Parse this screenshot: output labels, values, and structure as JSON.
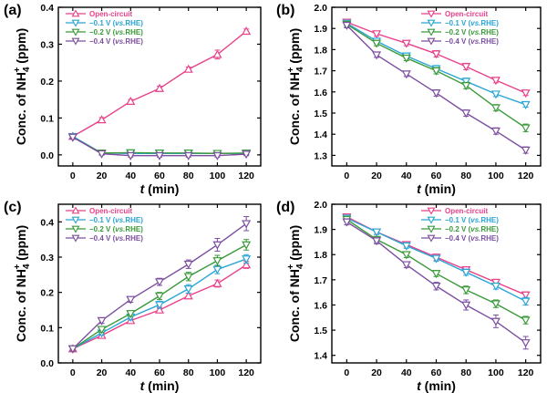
{
  "chart_data": [
    {
      "type": "line",
      "panel_label": "(a)",
      "title": "",
      "xlabel_var": "t",
      "xlabel_unit": " (min)",
      "ylabel_base": "Conc. of NH",
      "ylabel_sub": "4",
      "ylabel_sup": "+",
      "ylabel_tail": " (ppm)",
      "xlim": [
        -10,
        130
      ],
      "ylim": [
        -0.03,
        0.4
      ],
      "xticks": [
        "0",
        "20",
        "40",
        "60",
        "80",
        "100",
        "120"
      ],
      "xtick_values": [
        0,
        20,
        40,
        60,
        80,
        100,
        120
      ],
      "yticks": [
        "0.0",
        "0.1",
        "0.2",
        "0.3",
        "0.4"
      ],
      "ytick_values": [
        0.0,
        0.1,
        0.2,
        0.3,
        0.4
      ],
      "legend_position": "top-left",
      "x": [
        0,
        20,
        40,
        60,
        80,
        100,
        120
      ],
      "series": [
        {
          "name": "Open-circuit",
          "prefix": "Open-circuit",
          "potential": "",
          "suffix": "",
          "color": "#e8418a",
          "marker": "triangle-up",
          "values": [
            0.05,
            0.095,
            0.145,
            0.18,
            0.232,
            0.272,
            0.335
          ],
          "errors": [
            0.006,
            0.006,
            0.005,
            0.006,
            0.006,
            0.012,
            0.006
          ]
        },
        {
          "name": "-0.1 V (vs.RHE)",
          "prefix": "−0.1 V (",
          "potential": "vs.",
          "suffix": "RHE)",
          "color": "#2aa5d6",
          "marker": "triangle-down",
          "values": [
            0.05,
            0.005,
            0.004,
            0.004,
            0.004,
            0.004,
            0.004
          ],
          "errors": [
            0.005,
            0.004,
            0.004,
            0.004,
            0.004,
            0.004,
            0.004
          ]
        },
        {
          "name": "-0.2 V (vs.RHE)",
          "prefix": "−0.2 V (",
          "potential": "vs.",
          "suffix": "RHE)",
          "color": "#3a9a3a",
          "marker": "triangle-down",
          "values": [
            0.048,
            0.005,
            0.006,
            0.005,
            0.005,
            0.004,
            0.005
          ],
          "errors": [
            0.005,
            0.004,
            0.004,
            0.004,
            0.004,
            0.004,
            0.004
          ]
        },
        {
          "name": "-0.4 V (vs.RHE)",
          "prefix": "−0.4 V (",
          "potential": "vs.",
          "suffix": "RHE)",
          "color": "#7c4ea0",
          "marker": "triangle-down",
          "values": [
            0.048,
            0.003,
            -0.002,
            -0.002,
            -0.002,
            -0.002,
            0.002
          ],
          "errors": [
            0.005,
            0.004,
            0.004,
            0.004,
            0.004,
            0.004,
            0.004
          ]
        }
      ]
    },
    {
      "type": "line",
      "panel_label": "(b)",
      "title": "",
      "xlabel_var": "t",
      "xlabel_unit": " (min)",
      "ylabel_base": "Conc. of NH",
      "ylabel_sub": "4",
      "ylabel_sup": "+",
      "ylabel_tail": " (ppm)",
      "xlim": [
        -10,
        130
      ],
      "ylim": [
        1.25,
        2.0
      ],
      "xticks": [
        "0",
        "20",
        "40",
        "60",
        "80",
        "100",
        "120"
      ],
      "xtick_values": [
        0,
        20,
        40,
        60,
        80,
        100,
        120
      ],
      "yticks": [
        "1.3",
        "1.4",
        "1.5",
        "1.6",
        "1.7",
        "1.8",
        "1.9",
        "2.0"
      ],
      "ytick_values": [
        1.3,
        1.4,
        1.5,
        1.6,
        1.7,
        1.8,
        1.9,
        2.0
      ],
      "legend_position": "top-right",
      "x": [
        0,
        20,
        40,
        60,
        80,
        100,
        120
      ],
      "series": [
        {
          "name": "Open-circuit",
          "prefix": "Open-circuit",
          "potential": "",
          "suffix": "",
          "color": "#e8418a",
          "marker": "triangle-down",
          "values": [
            1.93,
            1.875,
            1.83,
            1.78,
            1.72,
            1.655,
            1.595
          ],
          "errors": [
            0.012,
            0.012,
            0.012,
            0.015,
            0.015,
            0.012,
            0.012
          ]
        },
        {
          "name": "-0.1 V (vs.RHE)",
          "prefix": "−0.1 V (",
          "potential": "vs.",
          "suffix": "RHE)",
          "color": "#2aa5d6",
          "marker": "triangle-down",
          "values": [
            1.925,
            1.84,
            1.77,
            1.71,
            1.65,
            1.59,
            1.54
          ],
          "errors": [
            0.012,
            0.012,
            0.012,
            0.015,
            0.015,
            0.012,
            0.012
          ]
        },
        {
          "name": "-0.2 V (vs.RHE)",
          "prefix": "−0.2 V (",
          "potential": "vs.",
          "suffix": "RHE)",
          "color": "#3a9a3a",
          "marker": "triangle-down",
          "values": [
            1.92,
            1.83,
            1.76,
            1.7,
            1.63,
            1.525,
            1.43
          ],
          "errors": [
            0.012,
            0.012,
            0.012,
            0.015,
            0.015,
            0.015,
            0.018
          ]
        },
        {
          "name": "-0.4 V (vs.RHE)",
          "prefix": "−0.4 V (",
          "potential": "vs.",
          "suffix": "RHE)",
          "color": "#7c4ea0",
          "marker": "triangle-down",
          "values": [
            1.915,
            1.775,
            1.685,
            1.595,
            1.5,
            1.415,
            1.325
          ],
          "errors": [
            0.012,
            0.012,
            0.012,
            0.015,
            0.015,
            0.015,
            0.015
          ]
        }
      ]
    },
    {
      "type": "line",
      "panel_label": "(c)",
      "title": "",
      "xlabel_var": "t",
      "xlabel_unit": " (min)",
      "ylabel_base": "Conc. of NH",
      "ylabel_sub": "4",
      "ylabel_sup": "+",
      "ylabel_tail": " (ppm)",
      "xlim": [
        -10,
        130
      ],
      "ylim": [
        0.0,
        0.45
      ],
      "xticks": [
        "0",
        "20",
        "40",
        "60",
        "80",
        "100",
        "120"
      ],
      "xtick_values": [
        0,
        20,
        40,
        60,
        80,
        100,
        120
      ],
      "yticks": [
        "0.0",
        "0.1",
        "0.2",
        "0.3",
        "0.4"
      ],
      "ytick_values": [
        0.0,
        0.1,
        0.2,
        0.3,
        0.4
      ],
      "legend_position": "top-left",
      "x": [
        0,
        20,
        40,
        60,
        80,
        100,
        120
      ],
      "series": [
        {
          "name": "Open-circuit",
          "prefix": "Open-circuit",
          "potential": "",
          "suffix": "",
          "color": "#e8418a",
          "marker": "triangle-up",
          "values": [
            0.04,
            0.078,
            0.12,
            0.15,
            0.19,
            0.225,
            0.278
          ],
          "errors": [
            0.006,
            0.006,
            0.006,
            0.008,
            0.008,
            0.01,
            0.01
          ]
        },
        {
          "name": "-0.1 V (vs.RHE)",
          "prefix": "−0.1 V (",
          "potential": "vs.",
          "suffix": "RHE)",
          "color": "#2aa5d6",
          "marker": "triangle-down",
          "values": [
            0.04,
            0.085,
            0.13,
            0.165,
            0.21,
            0.265,
            0.295
          ],
          "errors": [
            0.006,
            0.006,
            0.008,
            0.01,
            0.012,
            0.012,
            0.012
          ]
        },
        {
          "name": "-0.2 V (vs.RHE)",
          "prefix": "−0.2 V (",
          "potential": "vs.",
          "suffix": "RHE)",
          "color": "#3a9a3a",
          "marker": "triangle-down",
          "values": [
            0.04,
            0.095,
            0.14,
            0.19,
            0.245,
            0.29,
            0.335
          ],
          "errors": [
            0.006,
            0.008,
            0.008,
            0.01,
            0.012,
            0.015,
            0.015
          ]
        },
        {
          "name": "-0.4 V (vs.RHE)",
          "prefix": "−0.4 V (",
          "potential": "vs.",
          "suffix": "RHE)",
          "color": "#7c4ea0",
          "marker": "triangle-down",
          "values": [
            0.04,
            0.12,
            0.18,
            0.23,
            0.28,
            0.335,
            0.395
          ],
          "errors": [
            0.006,
            0.008,
            0.008,
            0.01,
            0.012,
            0.018,
            0.02
          ]
        }
      ]
    },
    {
      "type": "line",
      "panel_label": "(d)",
      "title": "",
      "xlabel_var": "t",
      "xlabel_unit": " (min)",
      "ylabel_base": "Conc. of NH",
      "ylabel_sub": "4",
      "ylabel_sup": "+",
      "ylabel_tail": " (ppm)",
      "xlim": [
        -10,
        130
      ],
      "ylim": [
        1.37,
        2.0
      ],
      "xticks": [
        "0",
        "20",
        "40",
        "60",
        "80",
        "100",
        "120"
      ],
      "xtick_values": [
        0,
        20,
        40,
        60,
        80,
        100,
        120
      ],
      "yticks": [
        "1.4",
        "1.5",
        "1.6",
        "1.7",
        "1.8",
        "1.9",
        "2.0"
      ],
      "ytick_values": [
        1.4,
        1.5,
        1.6,
        1.7,
        1.8,
        1.9,
        2.0
      ],
      "legend_position": "top-right",
      "x": [
        0,
        20,
        40,
        60,
        80,
        100,
        120
      ],
      "series": [
        {
          "name": "Open-circuit",
          "prefix": "Open-circuit",
          "potential": "",
          "suffix": "",
          "color": "#e8418a",
          "marker": "triangle-down",
          "values": [
            1.95,
            1.89,
            1.84,
            1.79,
            1.74,
            1.69,
            1.64
          ],
          "errors": [
            0.01,
            0.01,
            0.01,
            0.012,
            0.012,
            0.012,
            0.012
          ]
        },
        {
          "name": "-0.1 V (vs.RHE)",
          "prefix": "−0.1 V (",
          "potential": "vs.",
          "suffix": "RHE)",
          "color": "#2aa5d6",
          "marker": "triangle-down",
          "values": [
            1.945,
            1.89,
            1.835,
            1.785,
            1.73,
            1.675,
            1.615
          ],
          "errors": [
            0.01,
            0.01,
            0.01,
            0.012,
            0.012,
            0.012,
            0.015
          ]
        },
        {
          "name": "-0.2 V (vs.RHE)",
          "prefix": "−0.2 V (",
          "potential": "vs.",
          "suffix": "RHE)",
          "color": "#3a9a3a",
          "marker": "triangle-down",
          "values": [
            1.94,
            1.86,
            1.8,
            1.725,
            1.66,
            1.605,
            1.54
          ],
          "errors": [
            0.01,
            0.012,
            0.012,
            0.012,
            0.015,
            0.015,
            0.015
          ]
        },
        {
          "name": "-0.4 V (vs.RHE)",
          "prefix": "−0.4 V (",
          "potential": "vs.",
          "suffix": "RHE)",
          "color": "#7c4ea0",
          "marker": "triangle-down",
          "values": [
            1.93,
            1.855,
            1.76,
            1.675,
            1.6,
            1.535,
            1.45
          ],
          "errors": [
            0.012,
            0.012,
            0.012,
            0.015,
            0.02,
            0.025,
            0.025
          ]
        }
      ]
    }
  ]
}
